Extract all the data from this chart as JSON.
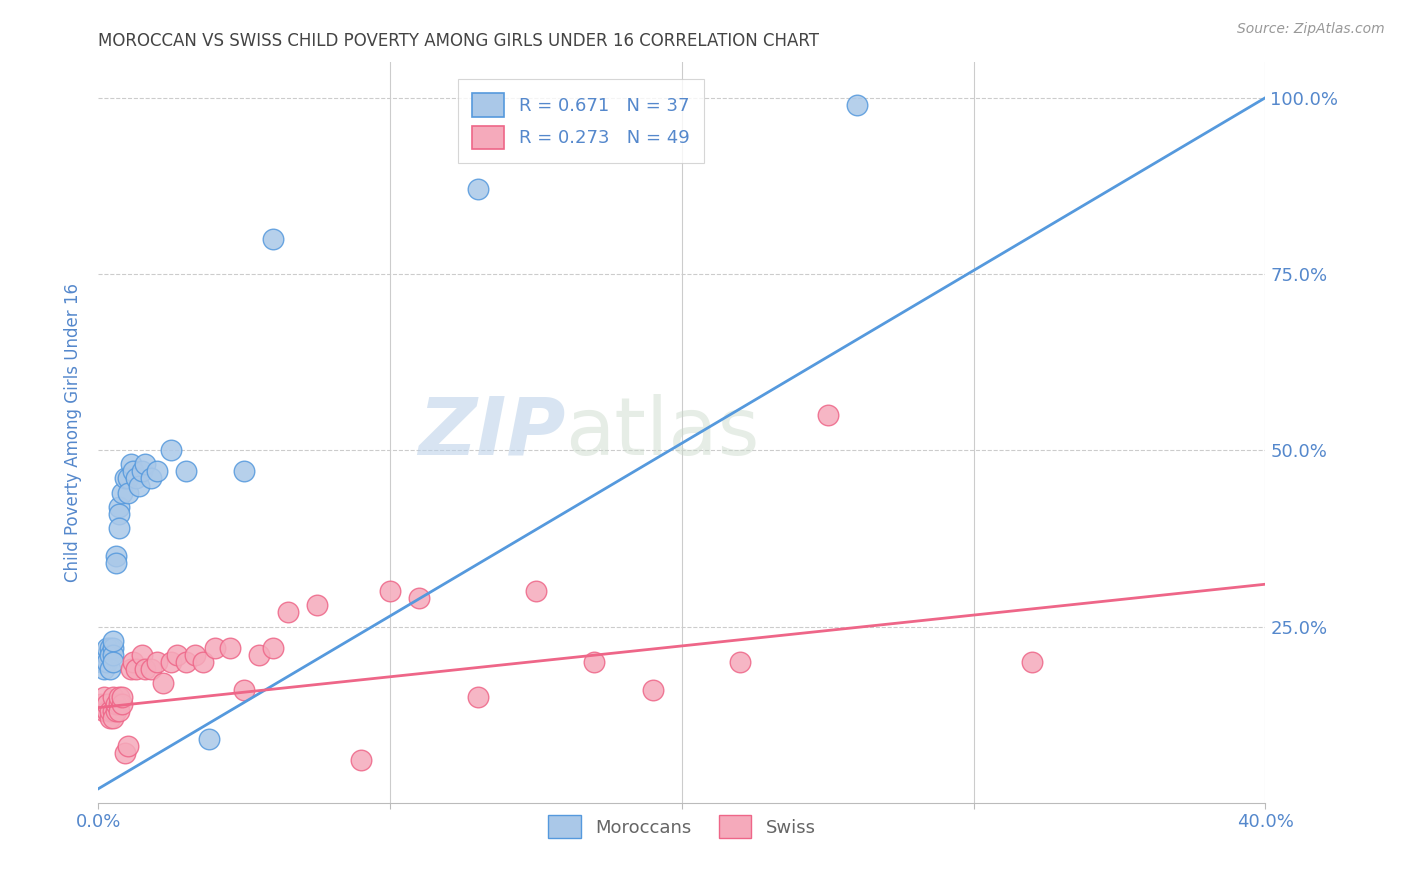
{
  "title": "MOROCCAN VS SWISS CHILD POVERTY AMONG GIRLS UNDER 16 CORRELATION CHART",
  "source": "Source: ZipAtlas.com",
  "ylabel": "Child Poverty Among Girls Under 16",
  "xlim": [
    0.0,
    0.4
  ],
  "ylim": [
    0.0,
    1.05
  ],
  "moroccan_R": 0.671,
  "moroccan_N": 37,
  "swiss_R": 0.273,
  "swiss_N": 49,
  "moroccan_color": "#aac8e8",
  "swiss_color": "#f5aabb",
  "moroccan_line_color": "#5599dd",
  "swiss_line_color": "#ee6688",
  "title_color": "#444444",
  "axis_color": "#5588cc",
  "grid_color": "#cccccc",
  "watermark_zip": "ZIP",
  "watermark_atlas": "atlas",
  "moroccan_x": [
    0.001,
    0.002,
    0.002,
    0.003,
    0.003,
    0.003,
    0.004,
    0.004,
    0.004,
    0.005,
    0.005,
    0.005,
    0.005,
    0.006,
    0.006,
    0.007,
    0.007,
    0.007,
    0.008,
    0.009,
    0.01,
    0.01,
    0.011,
    0.012,
    0.013,
    0.014,
    0.015,
    0.016,
    0.018,
    0.02,
    0.025,
    0.03,
    0.038,
    0.05,
    0.06,
    0.13,
    0.26
  ],
  "moroccan_y": [
    0.2,
    0.2,
    0.19,
    0.21,
    0.22,
    0.2,
    0.22,
    0.21,
    0.19,
    0.22,
    0.21,
    0.23,
    0.2,
    0.35,
    0.34,
    0.42,
    0.41,
    0.39,
    0.44,
    0.46,
    0.46,
    0.44,
    0.48,
    0.47,
    0.46,
    0.45,
    0.47,
    0.48,
    0.46,
    0.47,
    0.5,
    0.47,
    0.09,
    0.47,
    0.8,
    0.87,
    0.99
  ],
  "swiss_x": [
    0.001,
    0.002,
    0.002,
    0.003,
    0.003,
    0.004,
    0.004,
    0.005,
    0.005,
    0.005,
    0.006,
    0.006,
    0.007,
    0.007,
    0.007,
    0.008,
    0.008,
    0.009,
    0.01,
    0.011,
    0.012,
    0.013,
    0.015,
    0.016,
    0.018,
    0.02,
    0.022,
    0.025,
    0.027,
    0.03,
    0.033,
    0.036,
    0.04,
    0.045,
    0.05,
    0.055,
    0.06,
    0.065,
    0.075,
    0.09,
    0.1,
    0.11,
    0.13,
    0.15,
    0.17,
    0.19,
    0.22,
    0.25,
    0.32
  ],
  "swiss_y": [
    0.14,
    0.13,
    0.15,
    0.13,
    0.14,
    0.12,
    0.13,
    0.13,
    0.15,
    0.12,
    0.13,
    0.14,
    0.14,
    0.13,
    0.15,
    0.14,
    0.15,
    0.07,
    0.08,
    0.19,
    0.2,
    0.19,
    0.21,
    0.19,
    0.19,
    0.2,
    0.17,
    0.2,
    0.21,
    0.2,
    0.21,
    0.2,
    0.22,
    0.22,
    0.16,
    0.21,
    0.22,
    0.27,
    0.28,
    0.06,
    0.3,
    0.29,
    0.15,
    0.3,
    0.2,
    0.16,
    0.2,
    0.55,
    0.2
  ],
  "mor_trend_x0": 0.0,
  "mor_trend_y0": 0.02,
  "mor_trend_x1": 0.4,
  "mor_trend_y1": 1.0,
  "swiss_trend_x0": 0.0,
  "swiss_trend_y0": 0.135,
  "swiss_trend_x1": 0.4,
  "swiss_trend_y1": 0.31
}
